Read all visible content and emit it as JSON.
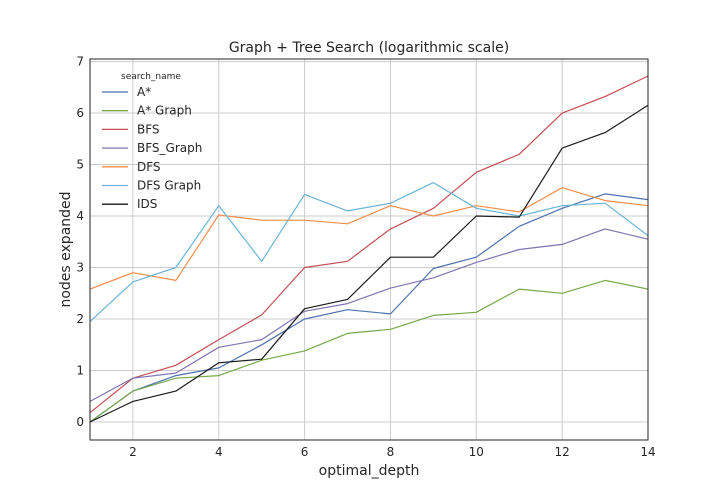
{
  "chart_data": {
    "type": "line",
    "title": "Graph + Tree Search (logarithmic scale)",
    "xlabel": "optimal_depth",
    "ylabel": "nodes expanded",
    "xlim": [
      1,
      14
    ],
    "ylim": [
      -0.35,
      7.05
    ],
    "xticks": [
      2,
      4,
      6,
      8,
      10,
      12,
      14
    ],
    "yticks": [
      0,
      1,
      2,
      3,
      4,
      5,
      6,
      7
    ],
    "grid": true,
    "legend": {
      "title": "search_name",
      "placement": "top-left"
    },
    "x": [
      1,
      2,
      3,
      4,
      5,
      6,
      7,
      8,
      9,
      10,
      11,
      12,
      13,
      14
    ],
    "series": [
      {
        "name": "A*",
        "color": "#4c72b0",
        "values": [
          0.0,
          0.6,
          0.9,
          1.05,
          1.5,
          2.0,
          2.18,
          2.1,
          2.98,
          3.2,
          3.8,
          4.15,
          4.43,
          4.32
        ]
      },
      {
        "name": "A* Graph",
        "color": "#78a84a",
        "values": [
          0.0,
          0.6,
          0.85,
          0.9,
          1.2,
          1.38,
          1.72,
          1.8,
          2.07,
          2.13,
          2.58,
          2.5,
          2.75,
          2.58
        ]
      },
      {
        "name": "BFS",
        "color": "#c44e52",
        "values": [
          0.18,
          0.85,
          1.1,
          1.6,
          2.08,
          3.0,
          3.12,
          3.75,
          4.15,
          4.85,
          5.2,
          6.0,
          6.32,
          6.72
        ]
      },
      {
        "name": "BFS_Graph",
        "color": "#8172b2",
        "values": [
          0.4,
          0.85,
          0.95,
          1.45,
          1.6,
          2.15,
          2.3,
          2.6,
          2.8,
          3.1,
          3.35,
          3.45,
          3.75,
          3.55
        ]
      },
      {
        "name": "DFS",
        "color": "#f28e4c",
        "values": [
          2.58,
          2.9,
          2.75,
          4.02,
          3.92,
          3.92,
          3.85,
          4.2,
          4.0,
          4.2,
          4.08,
          4.55,
          4.3,
          4.2
        ]
      },
      {
        "name": "DFS Graph",
        "color": "#6ab4d8",
        "values": [
          1.95,
          2.72,
          3.0,
          4.2,
          3.12,
          4.42,
          4.1,
          4.25,
          4.65,
          4.15,
          4.0,
          4.2,
          4.25,
          3.62
        ]
      },
      {
        "name": "IDS",
        "color": "#1a1a1a",
        "values": [
          0.0,
          0.4,
          0.6,
          1.15,
          1.22,
          2.2,
          2.38,
          3.2,
          3.2,
          4.0,
          3.98,
          5.32,
          5.62,
          6.15
        ]
      }
    ]
  }
}
